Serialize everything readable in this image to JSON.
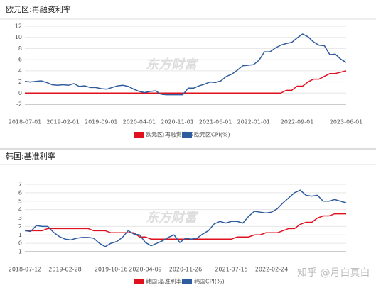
{
  "chart_data": [
    {
      "type": "line",
      "title": "欧元区:再融资利率",
      "watermark": "东方财富",
      "categories": [
        "2018-07-01",
        null,
        null,
        null,
        null,
        null,
        null,
        "2019-02-01",
        null,
        null,
        null,
        null,
        null,
        null,
        "2019-09-01",
        null,
        null,
        null,
        null,
        null,
        null,
        "2020-04-01",
        null,
        null,
        null,
        null,
        null,
        null,
        "2020-11-01",
        null,
        null,
        null,
        null,
        null,
        null,
        "2021-06-01",
        null,
        null,
        null,
        null,
        null,
        null,
        "2022-01-01",
        null,
        null,
        null,
        null,
        null,
        null,
        null,
        "2022-09-01",
        null,
        null,
        null,
        null,
        null,
        null,
        null,
        null,
        "2023-06-01"
      ],
      "series": [
        {
          "name": "欧元区:再融资利率",
          "color": "#e0101e",
          "values": [
            0,
            0,
            0,
            0,
            0,
            0,
            0,
            0,
            0,
            0,
            0,
            0,
            0,
            0,
            0,
            0,
            0,
            0,
            0,
            0,
            0,
            0,
            0,
            0,
            0,
            0,
            0,
            0,
            0,
            0,
            0,
            0,
            0,
            0,
            0,
            0,
            0,
            0,
            0,
            0,
            0,
            0,
            0,
            0,
            0,
            0,
            0,
            0,
            0.5,
            0.5,
            1.25,
            1.25,
            2.0,
            2.5,
            2.5,
            3.0,
            3.5,
            3.5,
            3.75,
            4.0
          ]
        },
        {
          "name": "欧元区CPI(%)",
          "color": "#2f5c9e",
          "values": [
            2.1,
            2.0,
            2.1,
            2.2,
            1.9,
            1.5,
            1.4,
            1.5,
            1.4,
            1.7,
            1.2,
            1.3,
            1.0,
            1.0,
            0.8,
            0.7,
            1.0,
            1.3,
            1.4,
            1.2,
            0.7,
            0.3,
            0.1,
            0.3,
            0.4,
            -0.2,
            -0.3,
            -0.3,
            -0.3,
            -0.3,
            0.9,
            0.9,
            1.3,
            1.6,
            2.0,
            1.9,
            2.2,
            3.0,
            3.4,
            4.1,
            4.9,
            5.0,
            5.1,
            5.9,
            7.4,
            7.4,
            8.1,
            8.6,
            8.9,
            9.1,
            9.9,
            10.6,
            10.1,
            9.2,
            8.6,
            8.5,
            6.9,
            7.0,
            6.1,
            5.5
          ]
        }
      ],
      "ylim": [
        -2,
        12
      ],
      "yticks": [
        -2,
        0,
        2,
        4,
        6,
        8,
        10,
        12
      ],
      "grid": true
    },
    {
      "type": "line",
      "title": "韩国:基准利率",
      "watermark": "东方财富",
      "categories": [
        "2018-07-12",
        null,
        null,
        null,
        null,
        null,
        null,
        "2019-02-28",
        null,
        null,
        null,
        null,
        null,
        null,
        null,
        "2019-10-16",
        null,
        null,
        null,
        null,
        null,
        "2020-04-09",
        null,
        null,
        null,
        null,
        null,
        null,
        "2020-11-26",
        null,
        null,
        null,
        null,
        null,
        null,
        null,
        "2021-07-15",
        null,
        null,
        null,
        null,
        null,
        null,
        "2022-02-24",
        null,
        null,
        null,
        null,
        null,
        null,
        null,
        null,
        null,
        null,
        null,
        null,
        null
      ],
      "series": [
        {
          "name": "韩国:基准利率",
          "color": "#e0101e",
          "values": [
            1.5,
            1.5,
            1.5,
            1.5,
            1.75,
            1.75,
            1.75,
            1.75,
            1.75,
            1.75,
            1.75,
            1.75,
            1.5,
            1.5,
            1.5,
            1.25,
            1.25,
            1.25,
            1.25,
            1.25,
            0.75,
            0.75,
            0.5,
            0.5,
            0.5,
            0.5,
            0.5,
            0.5,
            0.5,
            0.5,
            0.5,
            0.5,
            0.5,
            0.5,
            0.5,
            0.5,
            0.5,
            0.75,
            0.75,
            0.75,
            1.0,
            1.0,
            1.25,
            1.25,
            1.25,
            1.5,
            1.75,
            1.75,
            2.25,
            2.5,
            2.5,
            3.0,
            3.25,
            3.25,
            3.5,
            3.5,
            3.5
          ]
        },
        {
          "name": "韩国CPI(%)",
          "color": "#2f5c9e",
          "values": [
            1.5,
            1.4,
            2.1,
            2.0,
            2.0,
            1.3,
            0.8,
            0.5,
            0.4,
            0.6,
            0.7,
            0.7,
            0.6,
            0.0,
            -0.4,
            0.0,
            0.2,
            0.7,
            1.5,
            1.1,
            1.0,
            0.1,
            -0.3,
            0.0,
            0.3,
            0.7,
            1.0,
            0.1,
            0.6,
            0.5,
            0.6,
            1.1,
            1.5,
            2.3,
            2.6,
            2.4,
            2.6,
            2.6,
            2.4,
            3.2,
            3.8,
            3.7,
            3.6,
            3.7,
            4.1,
            4.8,
            5.4,
            6.0,
            6.3,
            5.7,
            5.6,
            5.7,
            5.0,
            5.0,
            5.2,
            5.0,
            4.8
          ]
        }
      ],
      "ylim": [
        -1,
        7
      ],
      "yticks": [
        -1,
        0,
        1,
        2,
        3,
        4,
        5,
        6,
        7
      ],
      "grid": true
    }
  ],
  "overlay_text": {
    "zhihu": "知乎 @月白真白"
  }
}
